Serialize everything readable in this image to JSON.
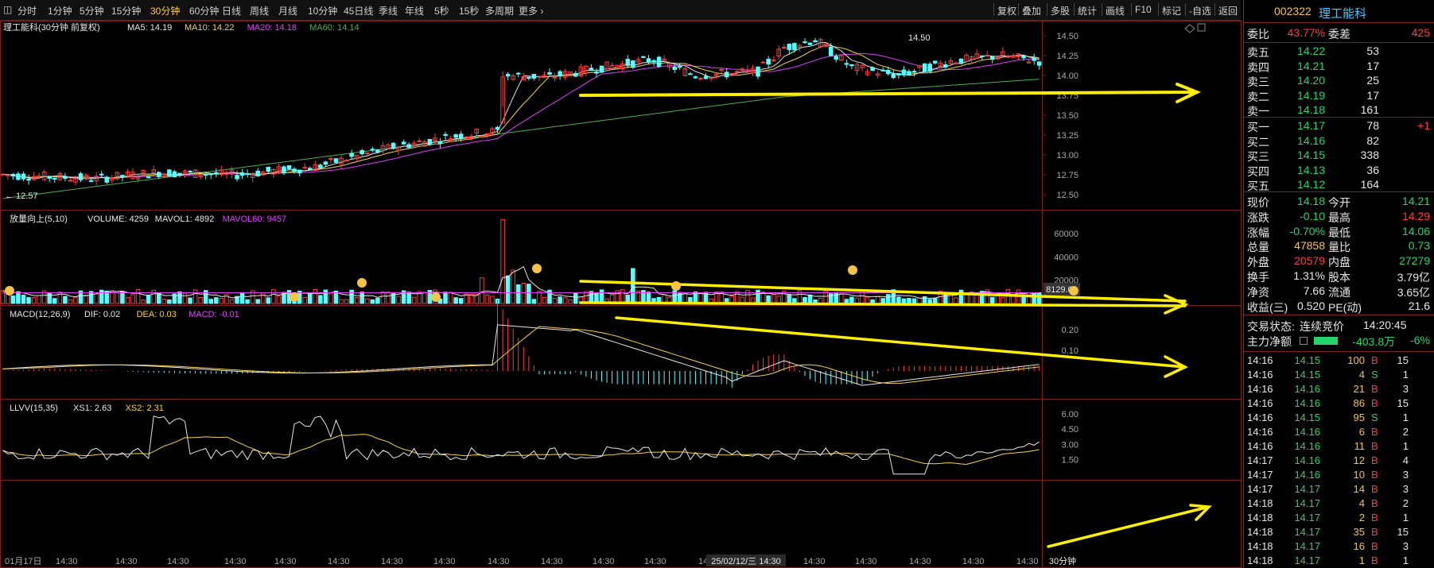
{
  "toolbar": {
    "left": [
      {
        "label": "分时",
        "active": false
      },
      {
        "label": "1分钟",
        "active": false
      },
      {
        "label": "5分钟",
        "active": false
      },
      {
        "label": "15分钟",
        "active": false
      },
      {
        "label": "30分钟",
        "active": true
      },
      {
        "label": "60分钟",
        "active": false
      },
      {
        "label": "日线",
        "active": false
      },
      {
        "label": "周线",
        "active": false
      },
      {
        "label": "月线",
        "active": false
      },
      {
        "label": "10分钟",
        "active": false
      },
      {
        "label": "45日线",
        "active": false
      },
      {
        "label": "季线",
        "active": false
      },
      {
        "label": "年线",
        "active": false
      },
      {
        "label": "5秒",
        "active": false
      },
      {
        "label": "15秒",
        "active": false
      },
      {
        "label": "多周期",
        "active": false
      },
      {
        "label": "更多 ›",
        "active": false
      }
    ],
    "right": [
      "复权",
      "叠加",
      "多股",
      "统计",
      "画线",
      "F10",
      "标记",
      "-自选",
      "返回"
    ]
  },
  "main_panel": {
    "title": "理工能科(30分钟 前复权)",
    "ma_items": [
      {
        "label": "MA5: 14.19",
        "color": "#e8e8e8"
      },
      {
        "label": "MA10: 14.22",
        "color": "#f5d442"
      },
      {
        "label": "MA20: 14.18",
        "color": "#e040fb"
      },
      {
        "label": "MA60: 14.14",
        "color": "#4caf50"
      }
    ],
    "high_label": "14.50",
    "low_label": "12.57",
    "y_ticks": [
      "14.50",
      "14.25",
      "14.00",
      "13.75",
      "13.50",
      "13.25",
      "13.00",
      "12.75",
      "12.50"
    ]
  },
  "volume_panel": {
    "title": "放量向上(5,10)",
    "items": [
      {
        "label": "VOLUME: 4259",
        "color": "#e8e8e8"
      },
      {
        "label": "MAVOL1: 4892",
        "color": "#e8e8e8"
      },
      {
        "label": "MAVOL60: 9457",
        "color": "#e040fb"
      }
    ],
    "y_ticks": [
      "60000",
      "40000",
      "20000"
    ],
    "current_value": "8129.06"
  },
  "macd_panel": {
    "title": "MACD(12,26,9)",
    "items": [
      {
        "label": "DIF: 0.02",
        "color": "#e8e8e8"
      },
      {
        "label": "DEA: 0.03",
        "color": "#f5d442"
      },
      {
        "label": "MACD: -0.01",
        "color": "#e040fb"
      }
    ],
    "y_ticks": [
      "0.20",
      "0.10"
    ]
  },
  "llvv_panel": {
    "title": "LLVV(15,35)",
    "items": [
      {
        "label": "XS1: 2.63",
        "color": "#e8e8e8"
      },
      {
        "label": "XS2: 2.31",
        "color": "#f5d442"
      }
    ],
    "y_ticks": [
      "6.00",
      "4.50",
      "3.00",
      "1.50"
    ]
  },
  "x_axis": {
    "labels": [
      "01月17日",
      "14:30",
      "14:30",
      "14:30",
      "14:30",
      "14:30",
      "14:30",
      "14:30",
      "14:30",
      "14:30",
      "14:30",
      "14:30",
      "14:30",
      "14:30",
      "14:30",
      "14:30",
      "14:30",
      "14:30",
      "14:30",
      "14:30",
      "14:30",
      "14:30",
      "14:30"
    ],
    "highlight": "25/02/12/三 14:30",
    "period": "30分钟"
  },
  "quote": {
    "code": "002322",
    "name": "理工能科",
    "wei_bi_label": "委比",
    "wei_bi": "43.77%",
    "wei_cha_label": "委差",
    "wei_cha": "425",
    "asks": [
      {
        "label": "卖五",
        "price": "14.22",
        "vol": "53"
      },
      {
        "label": "卖四",
        "price": "14.21",
        "vol": "17"
      },
      {
        "label": "卖三",
        "price": "14.20",
        "vol": "25"
      },
      {
        "label": "卖二",
        "price": "14.19",
        "vol": "17"
      },
      {
        "label": "卖一",
        "price": "14.18",
        "vol": "161"
      }
    ],
    "bids": [
      {
        "label": "买一",
        "price": "14.17",
        "vol": "78",
        "chg": "+1"
      },
      {
        "label": "买二",
        "price": "14.16",
        "vol": "82",
        "chg": ""
      },
      {
        "label": "买三",
        "price": "14.15",
        "vol": "338",
        "chg": ""
      },
      {
        "label": "买四",
        "price": "14.13",
        "vol": "36",
        "chg": ""
      },
      {
        "label": "买五",
        "price": "14.12",
        "vol": "164",
        "chg": ""
      }
    ],
    "stats": [
      {
        "l1": "现价",
        "v1": "14.18",
        "c1": "g",
        "l2": "今开",
        "v2": "14.21",
        "c2": "g"
      },
      {
        "l1": "涨跌",
        "v1": "-0.10",
        "c1": "g",
        "l2": "最高",
        "v2": "14.29",
        "c2": "r"
      },
      {
        "l1": "涨幅",
        "v1": "-0.70%",
        "c1": "g",
        "l2": "最低",
        "v2": "14.06",
        "c2": "g"
      },
      {
        "l1": "总量",
        "v1": "47858",
        "c1": "y",
        "l2": "量比",
        "v2": "0.73",
        "c2": "g"
      },
      {
        "l1": "外盘",
        "v1": "20579",
        "c1": "r",
        "l2": "内盘",
        "v2": "27279",
        "c2": "g"
      },
      {
        "l1": "换手",
        "v1": "1.31%",
        "c1": "w",
        "l2": "股本",
        "v2": "3.79亿",
        "c2": "w"
      },
      {
        "l1": "净资",
        "v1": "7.66",
        "c1": "w",
        "l2": "流通",
        "v2": "3.65亿",
        "c2": "w"
      },
      {
        "l1": "收益(三)",
        "v1": "0.520",
        "c1": "w",
        "l2": "PE(动)",
        "v2": "21.6",
        "c2": "w"
      }
    ],
    "trade_status_label": "交易状态:",
    "trade_status": "连续竞价",
    "trade_time": "14:20:45",
    "main_flow_label": "主力净额",
    "main_flow": "-403.8万",
    "main_flow_pct": "-6%"
  },
  "ticks": [
    {
      "t": "14:16",
      "p": "14.15",
      "v": "100",
      "d": "B",
      "n": "15"
    },
    {
      "t": "14:16",
      "p": "14.15",
      "v": "4",
      "d": "S",
      "n": "1"
    },
    {
      "t": "14:16",
      "p": "14.16",
      "v": "21",
      "d": "B",
      "n": "3"
    },
    {
      "t": "14:16",
      "p": "14.16",
      "v": "86",
      "d": "B",
      "n": "15"
    },
    {
      "t": "14:16",
      "p": "14.15",
      "v": "95",
      "d": "S",
      "n": "1"
    },
    {
      "t": "14:16",
      "p": "14.16",
      "v": "6",
      "d": "B",
      "n": "2"
    },
    {
      "t": "14:16",
      "p": "14.16",
      "v": "11",
      "d": "B",
      "n": "1"
    },
    {
      "t": "14:17",
      "p": "14.16",
      "v": "12",
      "d": "B",
      "n": "4"
    },
    {
      "t": "14:17",
      "p": "14.16",
      "v": "10",
      "d": "B",
      "n": "3"
    },
    {
      "t": "14:17",
      "p": "14.17",
      "v": "14",
      "d": "B",
      "n": "3"
    },
    {
      "t": "14:18",
      "p": "14.17",
      "v": "4",
      "d": "B",
      "n": "2"
    },
    {
      "t": "14:18",
      "p": "14.17",
      "v": "2",
      "d": "B",
      "n": "1"
    },
    {
      "t": "14:18",
      "p": "14.17",
      "v": "35",
      "d": "B",
      "n": "15"
    },
    {
      "t": "14:18",
      "p": "14.17",
      "v": "16",
      "d": "B",
      "n": "3"
    },
    {
      "t": "14:18",
      "p": "14.17",
      "v": "1",
      "d": "B",
      "n": "1"
    }
  ],
  "colors": {
    "up": "#ff3b3b",
    "down": "#54ffff",
    "ma5": "#e8e8e8",
    "ma10": "#f5d442",
    "ma20": "#e040fb",
    "ma60": "#4caf50",
    "annotation": "#ffee00"
  }
}
